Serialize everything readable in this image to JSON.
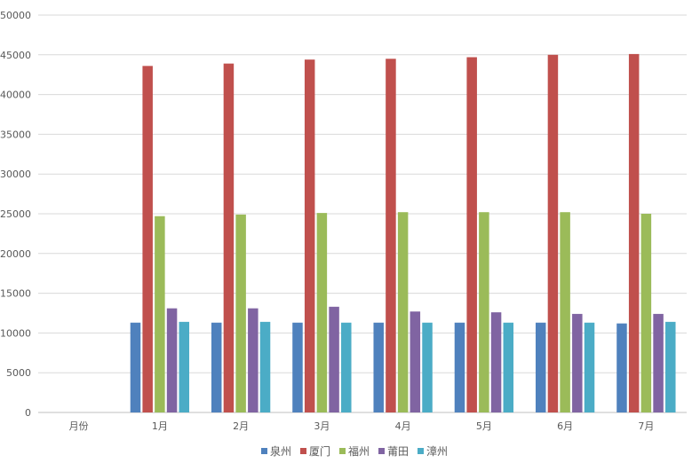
{
  "chart_data": {
    "type": "bar",
    "categories": [
      "月份",
      "1月",
      "2月",
      "3月",
      "4月",
      "5月",
      "6月",
      "7月"
    ],
    "series": [
      {
        "name": "泉州",
        "color": "#4F81BD",
        "values": [
          0,
          11300,
          11300,
          11300,
          11300,
          11300,
          11300,
          11200
        ]
      },
      {
        "name": "厦门",
        "color": "#C0504D",
        "values": [
          0,
          43600,
          43900,
          44400,
          44500,
          44700,
          45000,
          45100
        ]
      },
      {
        "name": "福州",
        "color": "#9BBB59",
        "values": [
          0,
          24700,
          24900,
          25100,
          25200,
          25200,
          25200,
          25000
        ]
      },
      {
        "name": "莆田",
        "color": "#8064A2",
        "values": [
          0,
          13100,
          13100,
          13300,
          12700,
          12600,
          12400,
          12400
        ]
      },
      {
        "name": "漳州",
        "color": "#4BACC6",
        "values": [
          0,
          11400,
          11400,
          11300,
          11300,
          11300,
          11300,
          11400
        ]
      }
    ],
    "yticks": [
      "0",
      "5000",
      "10000",
      "15000",
      "20000",
      "25000",
      "30000",
      "35000",
      "40000",
      "45000",
      "50000"
    ],
    "ylim": [
      0,
      50000
    ],
    "grid": true,
    "legend_position": "bottom"
  }
}
